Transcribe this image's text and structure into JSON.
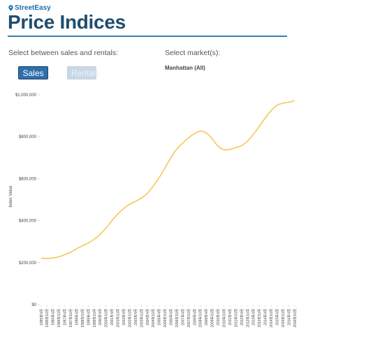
{
  "brand": {
    "name": "StreetEasy",
    "icon": "location-pin-icon",
    "color": "#1a6fb0"
  },
  "page": {
    "title": "Price Indices"
  },
  "controls": {
    "sales_prompt": "Select between sales and rentals:",
    "market_prompt": "Select market(s):",
    "sales_label": "Sales",
    "rentals_label": "Rentals",
    "selected_mode": "Sales",
    "market_value": "Manhattan (All)"
  },
  "colors": {
    "line": "#f5c75a",
    "title": "#1f4d6f",
    "rule": "#2f7fb7",
    "active_button": "#2f6fad"
  },
  "chart_data": {
    "type": "line",
    "title": "",
    "xlabel": "",
    "ylabel": "Index Value",
    "ylim": [
      0,
      1000000
    ],
    "y_ticks": [
      {
        "value": 0,
        "label": "$0"
      },
      {
        "value": 200000,
        "label": "$200,000"
      },
      {
        "value": 400000,
        "label": "$400,000"
      },
      {
        "value": 600000,
        "label": "$600,000"
      },
      {
        "value": 800000,
        "label": "$800,000"
      },
      {
        "value": 1000000,
        "label": "$1,000,000"
      }
    ],
    "grid": false,
    "legend": "none",
    "x": [
      "1995年4月",
      "1995年10月",
      "1996年4月",
      "1996年10月",
      "1997年4月",
      "1997年10月",
      "1998年4月",
      "1998年10月",
      "1999年4月",
      "1999年10月",
      "2000年4月",
      "2000年10月",
      "2001年4月",
      "2001年10月",
      "2002年4月",
      "2002年10月",
      "2003年4月",
      "2003年10月",
      "2004年4月",
      "2004年10月",
      "2005年4月",
      "2005年10月",
      "2006年4月",
      "2006年10月",
      "2007年4月",
      "2007年10月",
      "2008年4月",
      "2008年10月",
      "2009年4月",
      "2009年10月",
      "2010年4月",
      "2010年10月",
      "2011年4月",
      "2011年10月",
      "2012年4月",
      "2012年10月",
      "2013年4月",
      "2013年10月",
      "2014年4月",
      "2014年10月",
      "2015年4月",
      "2015年10月",
      "2016年4月",
      "2016年10月"
    ],
    "series": [
      {
        "values": [
          222000,
          220000,
          222000,
          228000,
          238000,
          250000,
          266000,
          280000,
          294000,
          312000,
          335000,
          365000,
          400000,
          432000,
          458000,
          478000,
          492000,
          508000,
          530000,
          565000,
          605000,
          652000,
          700000,
          742000,
          770000,
          795000,
          815000,
          827000,
          818000,
          790000,
          755000,
          738000,
          740000,
          748000,
          758000,
          780000,
          812000,
          850000,
          890000,
          925000,
          950000,
          960000,
          965000,
          972000
        ]
      }
    ]
  }
}
